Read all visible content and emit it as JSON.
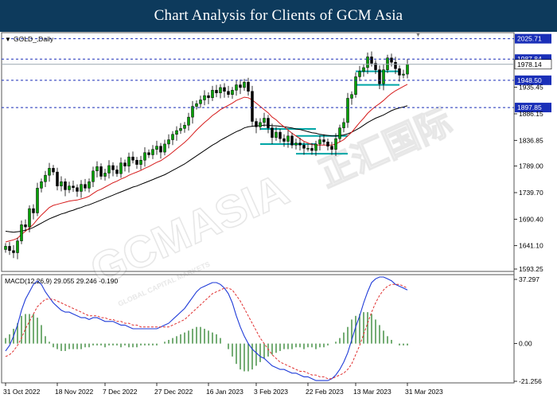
{
  "banner": {
    "title": "Chart Analysis for Clients of GCM Asia"
  },
  "chart_data": {
    "type": "candlestick",
    "symbol_label": "GOLD_,Daily",
    "price_axis": {
      "ticks": [
        "2025.71",
        "1987.84",
        "1978.14",
        "1948.50",
        "1935.45",
        "1897.85",
        "1886.15",
        "1836.85",
        "1789.00",
        "1739.70",
        "1690.40",
        "1641.10",
        "1593.25"
      ],
      "range": [
        1593.25,
        2037
      ]
    },
    "levels": [
      {
        "label": "2025.71",
        "value": 2025.71,
        "color": "#1a2fb8"
      },
      {
        "label": "1987.84",
        "value": 1987.84,
        "color": "#1a2fb8"
      },
      {
        "label": "1948.50",
        "value": 1948.5,
        "color": "#1a2fb8"
      },
      {
        "label": "1897.85",
        "value": 1897.85,
        "color": "#1a2fb8"
      }
    ],
    "current_price": {
      "label": "1978.14",
      "value": 1978.14
    },
    "x_axis_labels": [
      "31 Oct 2022",
      "18 Nov 2022",
      "7 Dec 2022",
      "27 Dec 2022",
      "16 Jan 2023",
      "3 Feb 2023",
      "22 Feb 2023",
      "13 Mar 2023",
      "31 Mar 2023"
    ],
    "closes": [
      1640,
      1632,
      1628,
      1650,
      1680,
      1676,
      1710,
      1702,
      1748,
      1760,
      1772,
      1785,
      1778,
      1752,
      1760,
      1745,
      1752,
      1749,
      1742,
      1755,
      1748,
      1760,
      1780,
      1788,
      1770,
      1776,
      1790,
      1782,
      1775,
      1795,
      1789,
      1806,
      1800,
      1792,
      1800,
      1814,
      1810,
      1820,
      1826,
      1815,
      1830,
      1838,
      1848,
      1855,
      1859,
      1865,
      1880,
      1900,
      1905,
      1912,
      1920,
      1916,
      1930,
      1925,
      1935,
      1928,
      1922,
      1930,
      1940,
      1935,
      1945,
      1928,
      1872,
      1862,
      1870,
      1878,
      1860,
      1842,
      1852,
      1840,
      1835,
      1845,
      1828,
      1832,
      1828,
      1822,
      1822,
      1818,
      1830,
      1838,
      1834,
      1826,
      1820,
      1840,
      1860,
      1870,
      1915,
      1922,
      1955,
      1965,
      1972,
      1992,
      1980,
      1968,
      1942,
      1968,
      1990,
      1982,
      1970,
      1958,
      1960,
      1978
    ],
    "ma_red": [
      1648,
      1650,
      1652,
      1655,
      1662,
      1668,
      1674,
      1681,
      1690,
      1698,
      1705,
      1712,
      1716,
      1718,
      1720,
      1722,
      1724,
      1725,
      1726,
      1728,
      1730,
      1733,
      1738,
      1743,
      1746,
      1750,
      1754,
      1758,
      1761,
      1765,
      1768,
      1772,
      1775,
      1778,
      1781,
      1785,
      1788,
      1792,
      1796,
      1799,
      1804,
      1809,
      1815,
      1821,
      1827,
      1833,
      1840,
      1848,
      1856,
      1863,
      1870,
      1876,
      1883,
      1888,
      1894,
      1898,
      1902,
      1906,
      1911,
      1914,
      1917,
      1916,
      1912,
      1906,
      1900,
      1894,
      1888,
      1880,
      1875,
      1868,
      1862,
      1856,
      1850,
      1845,
      1840,
      1835,
      1832,
      1829,
      1828,
      1828,
      1828,
      1828,
      1828,
      1830,
      1834,
      1838,
      1845,
      1852,
      1861,
      1870,
      1878,
      1887,
      1894,
      1900,
      1905,
      1911,
      1918,
      1924,
      1929,
      1933,
      1937,
      1941
    ],
    "ma_black": [
      1668,
      1667,
      1666,
      1667,
      1668,
      1670,
      1672,
      1675,
      1679,
      1683,
      1687,
      1691,
      1694,
      1697,
      1700,
      1702,
      1705,
      1707,
      1710,
      1712,
      1715,
      1717,
      1720,
      1723,
      1726,
      1729,
      1732,
      1735,
      1738,
      1741,
      1744,
      1747,
      1750,
      1752,
      1755,
      1758,
      1761,
      1764,
      1767,
      1770,
      1773,
      1777,
      1781,
      1785,
      1789,
      1793,
      1798,
      1803,
      1808,
      1813,
      1818,
      1823,
      1828,
      1832,
      1837,
      1841,
      1845,
      1849,
      1853,
      1856,
      1860,
      1862,
      1863,
      1864,
      1864,
      1865,
      1865,
      1864,
      1864,
      1863,
      1862,
      1861,
      1860,
      1858,
      1857,
      1855,
      1853,
      1851,
      1850,
      1848,
      1847,
      1846,
      1845,
      1845,
      1846,
      1847,
      1849,
      1852,
      1856,
      1860,
      1865,
      1870,
      1874,
      1878,
      1881,
      1884,
      1888,
      1892,
      1895,
      1897,
      1899,
      1901
    ],
    "rectangles": [
      {
        "from": 64,
        "to": 78,
        "top": 1858,
        "bottom": 1830,
        "color": "#00a6a6"
      },
      {
        "from": 73,
        "to": 86,
        "top": 1845,
        "bottom": 1812,
        "color": "#00a6a6"
      },
      {
        "from": 88,
        "to": 99,
        "top": 1965,
        "bottom": 1940,
        "color": "#00a6a6"
      }
    ],
    "macd": {
      "label": "MACD(12,26,9) 29.055 29.246 -0.190",
      "ticks": [
        "37.297",
        "0.00",
        "-21.256"
      ],
      "range": [
        -21.256,
        37.297
      ],
      "macd_values": [
        -4,
        -1,
        4,
        10,
        18,
        24,
        28,
        32,
        34,
        32,
        28,
        25,
        22,
        20,
        18,
        17,
        17,
        16,
        15,
        14,
        14,
        13,
        14,
        14,
        13,
        12,
        12,
        12,
        11,
        10,
        10,
        9,
        8,
        8,
        8,
        8,
        8,
        8,
        8,
        9,
        10,
        11,
        13,
        15,
        17,
        19,
        22,
        25,
        28,
        30,
        31,
        32,
        33,
        33,
        32,
        30,
        27,
        22,
        15,
        9,
        4,
        0,
        -3,
        -5,
        -7,
        -8,
        -10,
        -12,
        -13,
        -14,
        -14,
        -15,
        -16,
        -16,
        -17,
        -18,
        -18,
        -19,
        -20,
        -20,
        -20,
        -20,
        -19,
        -17,
        -14,
        -10,
        -5,
        2,
        9,
        15,
        22,
        28,
        33,
        35,
        36,
        36,
        35,
        34,
        32,
        31,
        30,
        29
      ],
      "signal_values": [
        -7,
        -6,
        -4,
        -1,
        3,
        8,
        12,
        16,
        20,
        22,
        24,
        24,
        24,
        23,
        22,
        21,
        20,
        19,
        18,
        17,
        16,
        15,
        15,
        15,
        14,
        14,
        13,
        13,
        12,
        12,
        11,
        11,
        10,
        10,
        9,
        9,
        9,
        9,
        9,
        9,
        9,
        9,
        10,
        11,
        12,
        13,
        15,
        17,
        19,
        21,
        23,
        25,
        27,
        28,
        29,
        30,
        30,
        29,
        26,
        23,
        19,
        15,
        11,
        7,
        3,
        0,
        -3,
        -6,
        -8,
        -10,
        -11,
        -12,
        -13,
        -14,
        -15,
        -15,
        -16,
        -17,
        -17,
        -18,
        -18,
        -19,
        -19,
        -18,
        -17,
        -16,
        -14,
        -11,
        -6,
        -1,
        5,
        11,
        17,
        22,
        26,
        29,
        31,
        32,
        32,
        32,
        31,
        30
      ]
    },
    "colors": {
      "up_candle": "#00a000",
      "down_candle": "#000000",
      "ma_red": "#d61c1c",
      "ma_black": "#000000",
      "macd_line": "#1f3bd8",
      "signal_line": "#e03030",
      "histogram": "#3a8a3a"
    },
    "watermark": {
      "brand": "GCMASIA",
      "chinese": "正汇国际",
      "tagline": "GLOBAL CAPITAL MARKETS"
    }
  }
}
